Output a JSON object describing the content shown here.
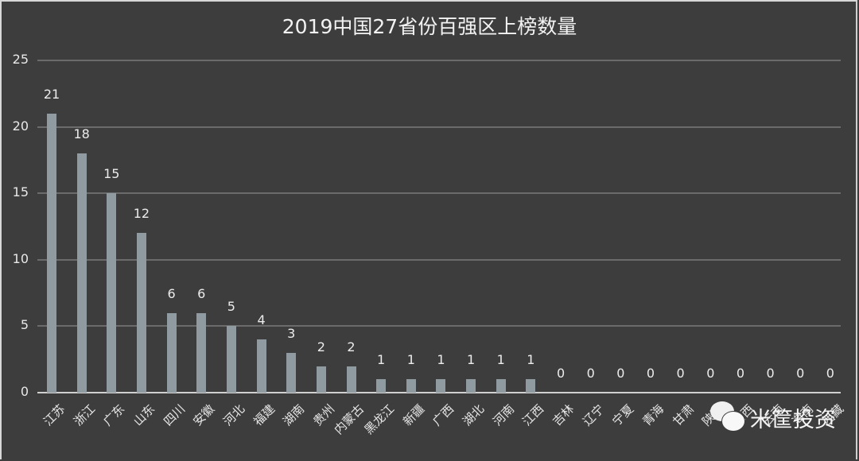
{
  "chart_data": {
    "type": "bar",
    "title": "2019中国27省份百强区上榜数量",
    "xlabel": "",
    "ylabel": "",
    "ylim": [
      0,
      25
    ],
    "yticks": [
      0,
      5,
      10,
      15,
      20,
      25
    ],
    "grid": true,
    "legend": null,
    "categories": [
      "江苏",
      "浙江",
      "广东",
      "山东",
      "四川",
      "安徽",
      "河北",
      "福建",
      "湖南",
      "贵州",
      "内蒙古",
      "黑龙江",
      "新疆",
      "广西",
      "湖北",
      "河南",
      "江西",
      "吉林",
      "辽宁",
      "宁夏",
      "青海",
      "甘肃",
      "陕西",
      "山西",
      "云南",
      "海南",
      "西藏"
    ],
    "values": [
      21,
      18,
      15,
      12,
      6,
      6,
      5,
      4,
      3,
      2,
      2,
      1,
      1,
      1,
      1,
      1,
      1,
      0,
      0,
      0,
      0,
      0,
      0,
      0,
      0,
      0,
      0
    ],
    "colors": {
      "background": "#3d3d3d",
      "bar": "#8f9ba1",
      "grid": "#6b6b6b",
      "text": "#ececec"
    }
  },
  "watermark": {
    "icon": "wechat-icon",
    "text": "米筐投资"
  }
}
